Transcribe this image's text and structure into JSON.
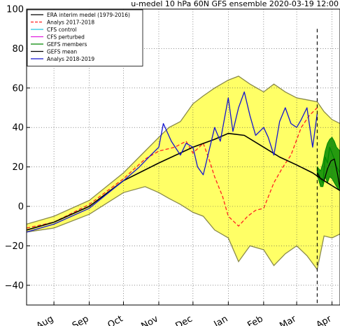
{
  "chart_data": {
    "type": "line",
    "title": "u-medel 10 hPa 60N GFS ensemble 2020-03-19 12:00",
    "xlabel": "",
    "ylabel": "",
    "ylim": [
      -50,
      100
    ],
    "yticks": [
      -40,
      -20,
      0,
      20,
      40,
      60,
      80,
      100
    ],
    "ytick_labels": [
      "−40",
      "−20",
      "0",
      "20",
      "40",
      "60",
      "80",
      "100"
    ],
    "xlim": [
      "2019-07-08",
      "2020-04-08"
    ],
    "xticks": [
      {
        "date": "2019-08-01",
        "label": "Aug"
      },
      {
        "date": "2019-09-01",
        "label": "Sep"
      },
      {
        "date": "2019-10-01",
        "label": "Oct"
      },
      {
        "date": "2019-11-01",
        "label": "Nov"
      },
      {
        "date": "2019-12-01",
        "label": "Dec"
      },
      {
        "date": "2020-01-01",
        "label": "Jan"
      },
      {
        "date": "2020-02-01",
        "label": "Feb"
      },
      {
        "date": "2020-03-01",
        "label": "Mar"
      },
      {
        "date": "2020-04-01",
        "label": "Apr"
      }
    ],
    "grid": true,
    "legend_position": "top-left",
    "forecast_start": "2020-03-19",
    "climatology_band": {
      "name": "ERA interim range",
      "color": "#ffff66",
      "x": [
        "2019-07-08",
        "2019-08-01",
        "2019-09-01",
        "2019-10-01",
        "2019-10-20",
        "2019-11-01",
        "2019-11-10",
        "2019-11-20",
        "2019-12-01",
        "2019-12-10",
        "2019-12-20",
        "2020-01-01",
        "2020-01-10",
        "2020-01-20",
        "2020-02-01",
        "2020-02-10",
        "2020-02-20",
        "2020-03-01",
        "2020-03-10",
        "2020-03-19",
        "2020-03-25",
        "2020-04-01",
        "2020-04-08"
      ],
      "upper": [
        -9,
        -5,
        3,
        17,
        28,
        35,
        40,
        43,
        52,
        56,
        60,
        64,
        66,
        62,
        58,
        62,
        58,
        55,
        54,
        53,
        48,
        44,
        42
      ],
      "lower": [
        -13,
        -11,
        -4,
        7,
        10,
        7,
        4,
        1,
        -3,
        -5,
        -12,
        -16,
        -28,
        -20,
        -22,
        -30,
        -24,
        -20,
        -25,
        -32,
        -15,
        -16,
        -14
      ]
    },
    "series": [
      {
        "name": "ERA interim medel (1979-2016)",
        "color": "#000000",
        "style": "solid",
        "x": [
          "2019-07-08",
          "2019-08-01",
          "2019-09-01",
          "2019-10-01",
          "2019-11-01",
          "2019-12-01",
          "2019-12-20",
          "2020-01-01",
          "2020-01-15",
          "2020-02-01",
          "2020-02-15",
          "2020-03-01",
          "2020-03-15",
          "2020-03-25",
          "2020-04-08"
        ],
        "values": [
          -12,
          -8,
          0,
          13,
          22,
          30,
          34,
          37,
          36,
          30,
          25,
          21,
          17,
          13,
          8
        ]
      },
      {
        "name": "Analys 2017-2018",
        "color": "#ff2222",
        "style": "dashed",
        "x": [
          "2019-07-08",
          "2019-08-01",
          "2019-09-01",
          "2019-10-01",
          "2019-10-20",
          "2019-11-01",
          "2019-11-15",
          "2019-11-25",
          "2019-12-01",
          "2019-12-10",
          "2019-12-15",
          "2019-12-20",
          "2019-12-27",
          "2020-01-01",
          "2020-01-10",
          "2020-01-18",
          "2020-01-25",
          "2020-02-01",
          "2020-02-10",
          "2020-02-18",
          "2020-02-25",
          "2020-03-05",
          "2020-03-12",
          "2020-03-19"
        ],
        "values": [
          -11,
          -8,
          1,
          14,
          24,
          28,
          30,
          33,
          27,
          32,
          24,
          15,
          5,
          -5,
          -10,
          -5,
          -2,
          -1,
          12,
          20,
          26,
          40,
          46,
          50
        ]
      },
      {
        "name": "CFS control",
        "color": "#22c8e0",
        "style": "solid",
        "x": [],
        "values": []
      },
      {
        "name": "CFS perturbed",
        "color": "#e020e0",
        "style": "solid",
        "x": [],
        "values": []
      },
      {
        "name": "GEFS members",
        "color": "#008800",
        "style": "solid",
        "x": [
          "2020-03-19",
          "2020-03-22",
          "2020-03-24",
          "2020-03-26",
          "2020-03-28",
          "2020-03-30",
          "2020-04-01",
          "2020-04-03",
          "2020-04-05",
          "2020-04-08"
        ],
        "values": [
          18,
          14,
          12,
          25,
          22,
          30,
          27,
          24,
          20,
          17
        ],
        "spread_upper": [
          20,
          18,
          22,
          28,
          32,
          34,
          35,
          33,
          30,
          28
        ],
        "spread_lower": [
          16,
          10,
          10,
          15,
          12,
          15,
          14,
          12,
          10,
          8
        ]
      },
      {
        "name": "GEFS mean",
        "color": "#000000",
        "style": "solid",
        "x": [
          "2020-03-19",
          "2020-03-22",
          "2020-03-25",
          "2020-03-28",
          "2020-03-31",
          "2020-04-03",
          "2020-04-06",
          "2020-04-08"
        ],
        "values": [
          17,
          14,
          13,
          19,
          23,
          24,
          16,
          9
        ]
      },
      {
        "name": "Analys 2018-2019",
        "color": "#1515d0",
        "style": "solid",
        "x": [
          "2019-07-08",
          "2019-08-01",
          "2019-09-01",
          "2019-10-01",
          "2019-10-15",
          "2019-10-25",
          "2019-11-01",
          "2019-11-05",
          "2019-11-12",
          "2019-11-20",
          "2019-11-25",
          "2019-12-01",
          "2019-12-05",
          "2019-12-10",
          "2019-12-15",
          "2019-12-20",
          "2019-12-25",
          "2020-01-01",
          "2020-01-05",
          "2020-01-10",
          "2020-01-15",
          "2020-01-20",
          "2020-01-25",
          "2020-02-01",
          "2020-02-05",
          "2020-02-10",
          "2020-02-15",
          "2020-02-20",
          "2020-02-25",
          "2020-03-01",
          "2020-03-05",
          "2020-03-10",
          "2020-03-15",
          "2020-03-19"
        ],
        "values": [
          -13,
          -9,
          -1,
          13,
          20,
          26,
          30,
          42,
          33,
          26,
          32,
          30,
          20,
          16,
          28,
          40,
          33,
          55,
          38,
          50,
          58,
          46,
          36,
          40,
          35,
          26,
          43,
          50,
          42,
          40,
          44,
          50,
          30,
          47
        ]
      }
    ]
  }
}
